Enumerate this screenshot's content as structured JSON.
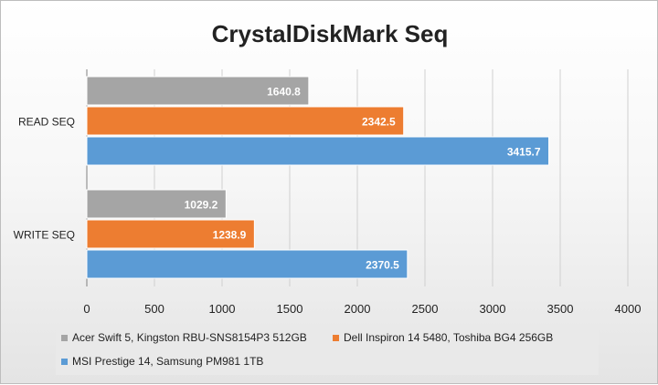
{
  "chart_data": {
    "type": "bar",
    "orientation": "horizontal",
    "title": "CrystalDiskMark Seq",
    "xlabel": "",
    "ylabel": "",
    "categories": [
      "READ SEQ",
      "WRITE SEQ"
    ],
    "xlim": [
      0,
      4000
    ],
    "x_ticks": [
      "0",
      "500",
      "1000",
      "1500",
      "2000",
      "2500",
      "3000",
      "3500",
      "4000"
    ],
    "grid": true,
    "legend_position": "bottom",
    "series": [
      {
        "name": "Acer Swift 5, Kingston RBU-SNS8154P3 512GB",
        "color": "#a5a5a5",
        "values": [
          1640.8,
          1029.2
        ],
        "labels": [
          "1640.8",
          "1029.2"
        ]
      },
      {
        "name": "Dell Inspiron 14 5480, Toshiba BG4 256GB",
        "color": "#ed7d31",
        "values": [
          2342.5,
          1238.9
        ],
        "labels": [
          "2342.5",
          "1238.9"
        ]
      },
      {
        "name": "MSI Prestige 14, Samsung PM981 1TB",
        "color": "#5b9bd5",
        "values": [
          3415.7,
          2370.5
        ],
        "labels": [
          "3415.7",
          "2370.5"
        ]
      }
    ]
  }
}
